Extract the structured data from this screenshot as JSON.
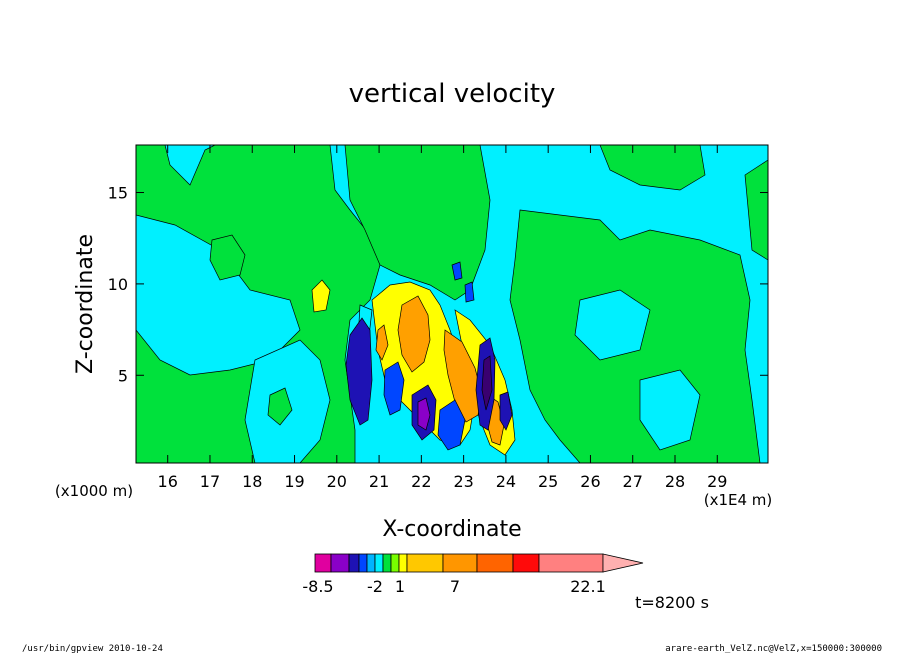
{
  "chart_data": {
    "type": "heatmap",
    "title": "vertical velocity",
    "xlabel": "X-coordinate",
    "ylabel": "Z-coordinate",
    "x_unit_note": "(x1E4 m)",
    "y_unit_note": "(x1000 m)",
    "xlim": [
      15.25,
      30.2
    ],
    "ylim": [
      0.2,
      17.6
    ],
    "x_ticks": [
      "16",
      "17",
      "18",
      "19",
      "20",
      "21",
      "22",
      "23",
      "24",
      "25",
      "26",
      "27",
      "28",
      "29"
    ],
    "y_ticks": [
      "5",
      "10",
      "15"
    ],
    "colorbar": {
      "labels": [
        "-8.5",
        "-2",
        "1",
        "7",
        "22.1"
      ],
      "colors": [
        "#e0009f",
        "#8a00c8",
        "#1e12b4",
        "#0046ff",
        "#00b4ff",
        "#00f0ff",
        "#00e13c",
        "#78ff00",
        "#ffff00",
        "#ffc800",
        "#ff9600",
        "#ff6400",
        "#ff0a0a",
        "#ff8080",
        "#ffb0b0"
      ]
    },
    "time_label": "t=8200 s",
    "features": [
      {
        "kind": "updraft",
        "level": "orange",
        "x": 21.6,
        "z": 6.5
      },
      {
        "kind": "updraft",
        "level": "orange",
        "x": 22.9,
        "z": 4.8
      },
      {
        "kind": "updraft",
        "level": "yellow",
        "x": 19.3,
        "z": 9.5
      },
      {
        "kind": "downdraft",
        "level": "blue",
        "x": 20.25,
        "z": 4.0
      },
      {
        "kind": "downdraft",
        "level": "purple",
        "x": 21.85,
        "z": 2.5
      },
      {
        "kind": "downdraft",
        "level": "navy",
        "x": 23.3,
        "z": 5.5
      }
    ]
  },
  "footer": {
    "left": "/usr/bin/gpview   2010-10-24",
    "right": "arare-earth_VelZ.nc@VelZ,x=150000:300000"
  }
}
